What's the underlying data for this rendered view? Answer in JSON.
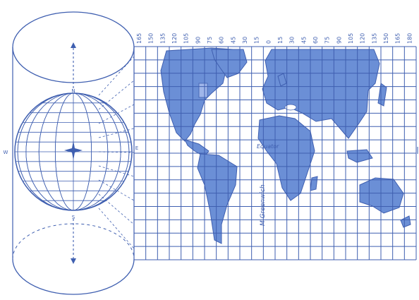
{
  "colors": {
    "ink": "#3f5fb0",
    "land": "#6b8fd6",
    "land_light": "#9fb6ea",
    "background": "#ffffff"
  },
  "longitude_labels": [
    "165",
    "150",
    "135",
    "120",
    "105",
    "90",
    "75",
    "60",
    "45",
    "30",
    "15",
    "0",
    "15",
    "30",
    "45",
    "60",
    "75",
    "90",
    "105",
    "120",
    "135",
    "150",
    "165",
    "180"
  ],
  "globe_labels": {
    "north": "N",
    "south": "S",
    "west": "W",
    "east": "E"
  },
  "map_labels": {
    "equator": "Equator",
    "meridian": "M Greenwich"
  },
  "diagram": {
    "cylinder": "cylinder-outline",
    "globe": "globe-with-graticule",
    "map": "cylindrical-projection-world-map"
  }
}
